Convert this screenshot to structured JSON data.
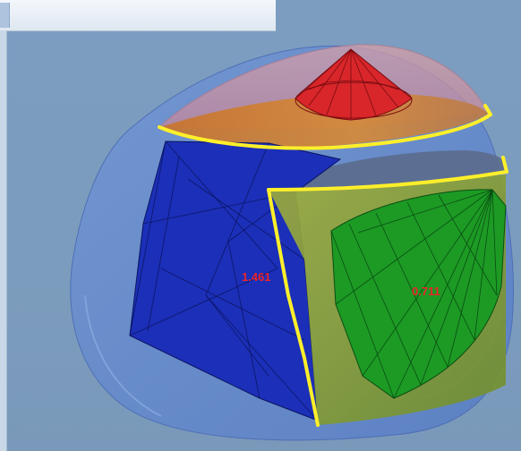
{
  "viewer": {
    "title": "",
    "background_color": "#7c9dc0"
  },
  "scene": {
    "rough_stone_color": "#5a7fcf",
    "cut_plane_color": "#ffef2a",
    "stones": [
      {
        "shape": "round brilliant",
        "color": "#d8262a",
        "label": ""
      },
      {
        "shape": "square step cut",
        "color": "#1c2fb8",
        "label": "1.461"
      },
      {
        "shape": "round brilliant",
        "color": "#1c9a24",
        "label": "0.711"
      }
    ]
  }
}
